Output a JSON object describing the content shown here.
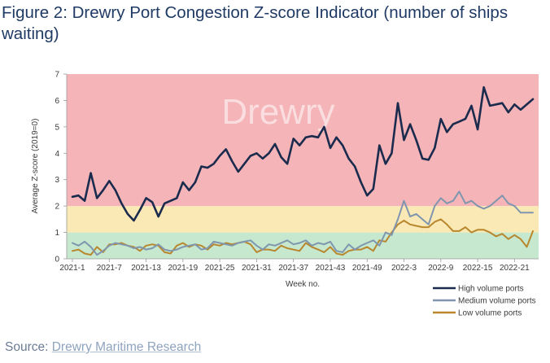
{
  "figure": {
    "title": "Figure 2: Drewry Port Congestion Z-score Indicator (number of ships waiting)",
    "source_label": "Source: ",
    "source_text": "Drewry Maritime Research",
    "watermark": "Drewry"
  },
  "colors": {
    "band_red": "#f4b4b8",
    "band_yellow": "#fbe9b5",
    "band_green": "#c6e8cf",
    "high": "#1b2b4d",
    "medium": "#7f96ae",
    "low": "#b8872e"
  },
  "chart_data": {
    "type": "line",
    "xlabel": "Week no.",
    "ylabel": "Average Z-score (2019=0)",
    "ylim": [
      0,
      7
    ],
    "yticks": [
      "0",
      "1",
      "2",
      "3",
      "4",
      "5",
      "6",
      "7"
    ],
    "bands": [
      {
        "from": 0,
        "to": 1,
        "color": "green"
      },
      {
        "from": 1,
        "to": 2,
        "color": "yellow"
      },
      {
        "from": 2,
        "to": 7,
        "color": "red"
      }
    ],
    "x_ticks": [
      {
        "index": 0,
        "label": "2021-1"
      },
      {
        "index": 6,
        "label": "2021-7"
      },
      {
        "index": 12,
        "label": "2021-13"
      },
      {
        "index": 18,
        "label": "2021-19"
      },
      {
        "index": 24,
        "label": "2021-25"
      },
      {
        "index": 30,
        "label": "2021-31"
      },
      {
        "index": 36,
        "label": "2021-37"
      },
      {
        "index": 42,
        "label": "2021-43"
      },
      {
        "index": 48,
        "label": "2021-49"
      },
      {
        "index": 54,
        "label": "2022-3"
      },
      {
        "index": 60,
        "label": "2022-9"
      },
      {
        "index": 66,
        "label": "2022-15"
      },
      {
        "index": 72,
        "label": "2022-21"
      }
    ],
    "n_points": 76,
    "legend_position": "bottom-right",
    "series": [
      {
        "name": "High volume ports",
        "color_key": "high",
        "values": [
          2.35,
          2.4,
          2.2,
          3.25,
          2.3,
          2.6,
          2.95,
          2.6,
          2.1,
          1.7,
          1.45,
          1.85,
          2.3,
          2.15,
          1.6,
          2.1,
          2.2,
          2.3,
          2.9,
          2.6,
          2.9,
          3.5,
          3.45,
          3.6,
          3.9,
          4.15,
          3.7,
          3.3,
          3.6,
          3.9,
          4.0,
          3.8,
          4.0,
          4.35,
          3.85,
          3.6,
          4.55,
          4.3,
          4.6,
          4.65,
          4.6,
          5.0,
          4.2,
          4.6,
          4.3,
          3.8,
          3.5,
          2.9,
          2.4,
          2.65,
          4.3,
          3.6,
          4.0,
          5.9,
          4.5,
          5.1,
          4.5,
          3.8,
          3.75,
          4.2,
          5.3,
          4.8,
          5.1,
          5.2,
          5.3,
          5.8,
          4.9,
          6.5,
          5.8,
          5.85,
          5.9,
          5.55,
          5.85,
          5.65,
          5.85,
          6.05
        ]
      },
      {
        "name": "Medium volume ports",
        "color_key": "medium",
        "values": [
          0.6,
          0.5,
          0.65,
          0.45,
          0.15,
          0.3,
          0.5,
          0.6,
          0.55,
          0.5,
          0.4,
          0.45,
          0.35,
          0.4,
          0.55,
          0.35,
          0.3,
          0.35,
          0.45,
          0.5,
          0.55,
          0.35,
          0.4,
          0.65,
          0.6,
          0.55,
          0.5,
          0.6,
          0.65,
          0.7,
          0.5,
          0.35,
          0.55,
          0.5,
          0.6,
          0.7,
          0.55,
          0.6,
          0.7,
          0.5,
          0.6,
          0.55,
          0.65,
          0.3,
          0.25,
          0.55,
          0.35,
          0.5,
          0.6,
          0.7,
          0.5,
          1.0,
          0.9,
          1.5,
          2.2,
          1.6,
          1.7,
          1.5,
          1.3,
          2.0,
          2.3,
          2.1,
          2.2,
          2.55,
          2.1,
          2.2,
          2.0,
          1.9,
          2.0,
          2.2,
          2.4,
          2.1,
          2.0,
          1.75,
          1.75,
          1.75
        ]
      },
      {
        "name": "Low volume ports",
        "color_key": "low",
        "values": [
          0.3,
          0.35,
          0.2,
          0.15,
          0.45,
          0.25,
          0.55,
          0.55,
          0.6,
          0.5,
          0.45,
          0.3,
          0.5,
          0.55,
          0.5,
          0.25,
          0.2,
          0.5,
          0.6,
          0.45,
          0.55,
          0.5,
          0.35,
          0.55,
          0.5,
          0.6,
          0.55,
          0.6,
          0.65,
          0.55,
          0.25,
          0.35,
          0.35,
          0.3,
          0.5,
          0.4,
          0.35,
          0.3,
          0.6,
          0.45,
          0.35,
          0.25,
          0.45,
          0.2,
          0.15,
          0.3,
          0.35,
          0.35,
          0.45,
          0.3,
          0.7,
          0.65,
          1.0,
          1.3,
          1.45,
          1.3,
          1.25,
          1.2,
          1.2,
          1.4,
          1.5,
          1.3,
          1.05,
          1.05,
          1.2,
          1.0,
          1.1,
          1.1,
          1.0,
          0.85,
          0.95,
          0.75,
          0.9,
          0.75,
          0.45,
          1.05
        ]
      }
    ]
  }
}
